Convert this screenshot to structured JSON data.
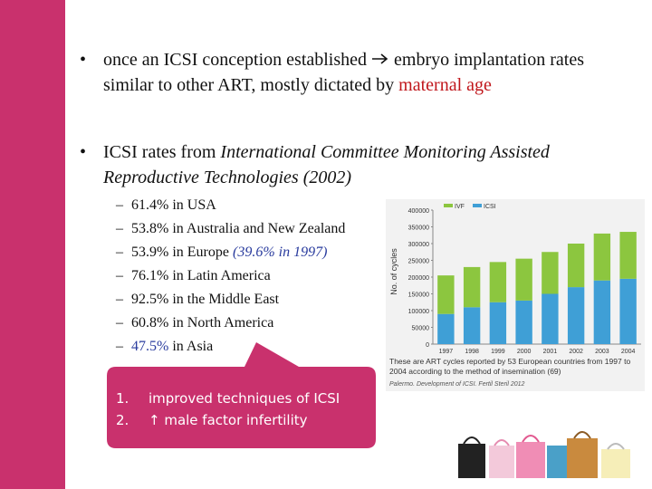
{
  "bullets": [
    {
      "text": "once an ICSI conception established",
      "after_arrow": "embryo implantation rates similar to other ART, mostly dictated by",
      "highlight": "maternal age"
    },
    {
      "text": "ICSI rates from",
      "italic": "International Committee Monitoring Assisted Reproductive Technologies (2002)"
    }
  ],
  "sub_items": [
    {
      "text": "61.4% in USA"
    },
    {
      "text": "53.8% in Australia and New Zealand"
    },
    {
      "text": "53.9% in Europe",
      "note": "(39.6% in 1997)"
    },
    {
      "text": "76.1% in Latin America"
    },
    {
      "text": "92.5% in the Middle East"
    },
    {
      "text": "60.8% in North America"
    },
    {
      "highlight": "47.5%",
      "text": "in Asia"
    }
  ],
  "callout": [
    "improved techniques of ICSI",
    "↑ male factor infertility"
  ],
  "figure": {
    "caption": "These are ART cycles reported by 53 European countries from 1997 to 2004 according to the method of insemination (69)",
    "source": "Palermo. Development of ICSI. Fertil Steril 2012",
    "chart_data": {
      "type": "bar",
      "stacked": true,
      "y_label": "No. of cycles",
      "categories": [
        "1997",
        "1998",
        "1999",
        "2000",
        "2001",
        "2002",
        "2003",
        "2004"
      ],
      "series": [
        {
          "name": "ICSI",
          "color": "#3f9fd6",
          "values": [
            90000,
            110000,
            125000,
            130000,
            150000,
            170000,
            190000,
            195000
          ]
        },
        {
          "name": "IVF",
          "color": "#8cc63f",
          "values": [
            115000,
            120000,
            120000,
            125000,
            125000,
            130000,
            140000,
            140000
          ]
        }
      ],
      "ylim": [
        0,
        400000
      ],
      "yticks": [
        0,
        50000,
        100000,
        150000,
        200000,
        250000,
        300000,
        350000,
        400000
      ]
    }
  }
}
